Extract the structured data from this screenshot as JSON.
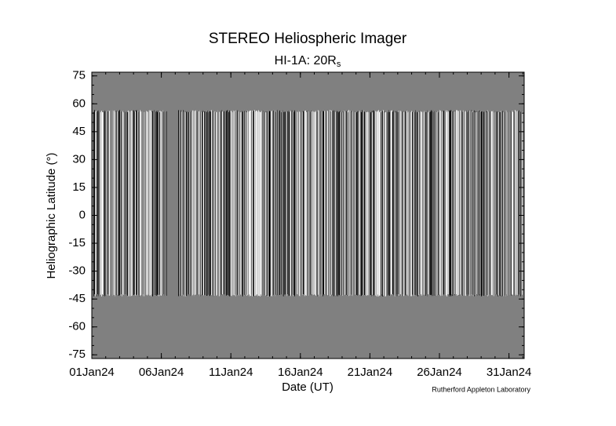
{
  "chart_data": {
    "type": "image",
    "title": "STEREO Heliospheric Imager",
    "subtitle": "HI-1A: 20R",
    "subtitle_sub": "s",
    "ylabel": "Heliographic Latitude (°)",
    "xlabel": "Date (UT)",
    "credit": "Rutherford Appleton Laboratory",
    "xtick_labels": [
      "01Jan24",
      "06Jan24",
      "11Jan24",
      "16Jan24",
      "21Jan24",
      "26Jan24",
      "31Jan24"
    ],
    "ylim": [
      -77,
      77
    ],
    "yticks": [
      75,
      60,
      45,
      30,
      15,
      0,
      -15,
      -30,
      -45,
      -60,
      -75
    ],
    "data_lat_range": [
      -43,
      56
    ],
    "background_color": "#808080"
  }
}
